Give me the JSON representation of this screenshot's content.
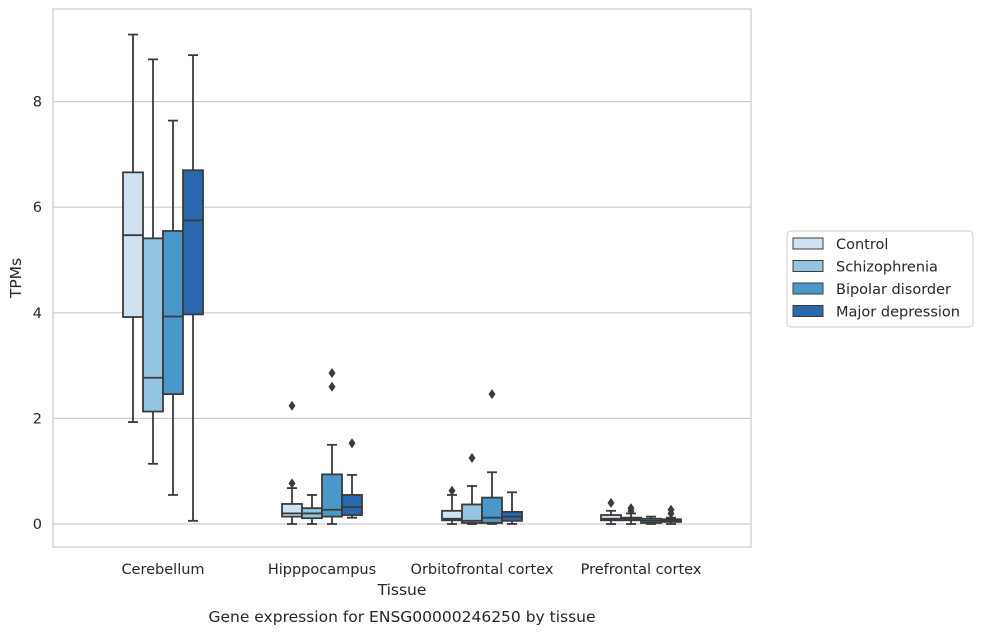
{
  "chart_data": {
    "type": "box",
    "title": "",
    "caption": "Gene expression for ENSG00000246250 by tissue",
    "xlabel": "Tissue",
    "ylabel": "TPMs",
    "ylim": [
      -0.45,
      9.8
    ],
    "yticks": [
      0,
      2,
      4,
      6,
      8
    ],
    "grid": "horizontal",
    "legend_position": "right",
    "categories": [
      "Cerebellum",
      "Hipppocampus",
      "Orbitofrontal cortex",
      "Prefrontal cortex"
    ],
    "series": [
      {
        "name": "Control",
        "color": "#d0e1f2",
        "boxes": [
          {
            "min": 1.93,
            "q1": 3.92,
            "median": 5.47,
            "q3": 6.66,
            "max": 9.27,
            "outliers": []
          },
          {
            "min": 0.0,
            "q1": 0.14,
            "median": 0.2,
            "q3": 0.38,
            "max": 0.68,
            "outliers": [
              0.77,
              2.24
            ]
          },
          {
            "min": 0.0,
            "q1": 0.07,
            "median": 0.1,
            "q3": 0.25,
            "max": 0.55,
            "outliers": [
              0.63
            ]
          },
          {
            "min": 0.0,
            "q1": 0.07,
            "median": 0.1,
            "q3": 0.17,
            "max": 0.25,
            "outliers": [
              0.4
            ]
          }
        ]
      },
      {
        "name": "Schizophrenia",
        "color": "#94c4df",
        "boxes": [
          {
            "min": 1.14,
            "q1": 2.13,
            "median": 2.77,
            "q3": 5.41,
            "max": 8.8,
            "outliers": []
          },
          {
            "min": 0.0,
            "q1": 0.11,
            "median": 0.2,
            "q3": 0.3,
            "max": 0.55,
            "outliers": []
          },
          {
            "min": 0.0,
            "q1": 0.02,
            "median": 0.06,
            "q3": 0.37,
            "max": 0.72,
            "outliers": [
              1.25
            ]
          },
          {
            "min": 0.0,
            "q1": 0.07,
            "median": 0.1,
            "q3": 0.12,
            "max": 0.2,
            "outliers": [
              0.25,
              0.3
            ]
          }
        ]
      },
      {
        "name": "Bipolar disorder",
        "color": "#4a98c9",
        "boxes": [
          {
            "min": 0.55,
            "q1": 2.46,
            "median": 3.93,
            "q3": 5.55,
            "max": 7.64,
            "outliers": []
          },
          {
            "min": 0.0,
            "q1": 0.14,
            "median": 0.27,
            "q3": 0.94,
            "max": 1.5,
            "outliers": [
              2.6,
              2.86
            ]
          },
          {
            "min": 0.0,
            "q1": 0.02,
            "median": 0.12,
            "q3": 0.5,
            "max": 0.98,
            "outliers": [
              2.46
            ]
          },
          {
            "min": 0.0,
            "q1": 0.02,
            "median": 0.06,
            "q3": 0.1,
            "max": 0.14,
            "outliers": []
          }
        ]
      },
      {
        "name": "Major depression",
        "color": "#2a68ad",
        "boxes": [
          {
            "min": 0.06,
            "q1": 3.97,
            "median": 5.75,
            "q3": 6.7,
            "max": 8.88,
            "outliers": []
          },
          {
            "min": 0.12,
            "q1": 0.17,
            "median": 0.32,
            "q3": 0.55,
            "max": 0.93,
            "outliers": [
              1.53
            ]
          },
          {
            "min": 0.0,
            "q1": 0.06,
            "median": 0.14,
            "q3": 0.23,
            "max": 0.6,
            "outliers": []
          },
          {
            "min": 0.0,
            "q1": 0.04,
            "median": 0.06,
            "q3": 0.09,
            "max": 0.12,
            "outliers": [
              0.2,
              0.27
            ]
          }
        ]
      }
    ]
  }
}
